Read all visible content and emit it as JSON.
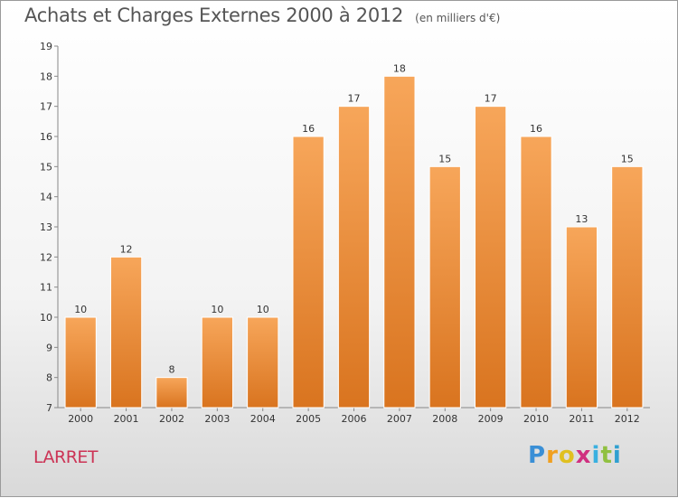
{
  "header": {
    "title": "Achats et Charges Externes 2000 à 2012",
    "unit": "(en milliers d'€)"
  },
  "commune": "LARRET",
  "brand": {
    "letters": [
      "P",
      "r",
      "o",
      "x",
      "i",
      "t",
      "i"
    ],
    "colors": [
      "#3a8fd6",
      "#f0a020",
      "#e0c020",
      "#d03080",
      "#3ab0e0",
      "#90c040",
      "#30a0d0"
    ]
  },
  "chart_data": {
    "type": "bar",
    "categories": [
      "2000",
      "2001",
      "2002",
      "2003",
      "2004",
      "2005",
      "2006",
      "2007",
      "2008",
      "2009",
      "2010",
      "2011",
      "2012"
    ],
    "values": [
      10,
      12,
      8,
      10,
      10,
      16,
      17,
      18,
      15,
      17,
      16,
      13,
      15
    ],
    "title": "Achats et Charges Externes 2000 à 2012",
    "ylim": [
      7,
      19
    ],
    "yticks": [
      7,
      8,
      9,
      10,
      11,
      12,
      13,
      14,
      15,
      16,
      17,
      18,
      19
    ],
    "grid": false,
    "bar_color_top": "#f7a65a",
    "bar_color_bottom": "#d9741f",
    "bar_stroke": "#ffffff"
  }
}
